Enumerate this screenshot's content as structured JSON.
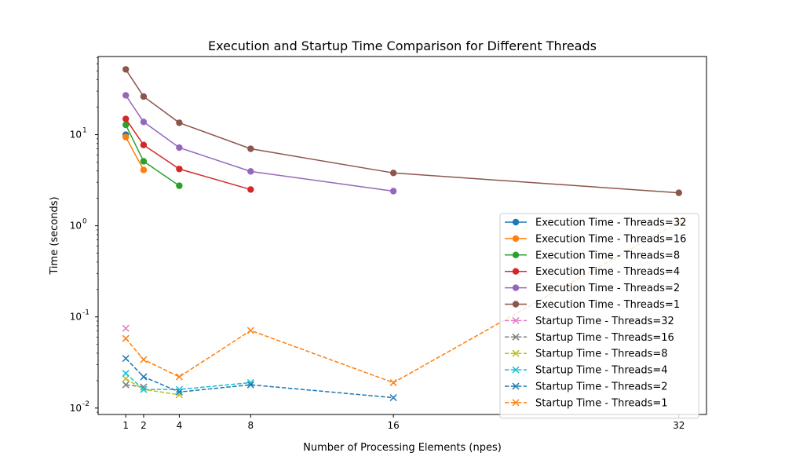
{
  "chart_data": {
    "type": "line",
    "title": "Execution and Startup Time Comparison for Different Threads",
    "xlabel": "Number of Processing Elements (npes)",
    "ylabel": "Time (seconds)",
    "yscale": "log",
    "xlim": [
      -0.55,
      33.55
    ],
    "ylim": [
      0.0085,
      72
    ],
    "xticks": [
      1,
      2,
      4,
      8,
      16,
      32
    ],
    "xtick_labels": [
      "1",
      "2",
      "4",
      "8",
      "16",
      "32"
    ],
    "yticks": [
      0.01,
      0.1,
      1,
      10
    ],
    "grid": false,
    "legend_position": "lower-right",
    "series": [
      {
        "name": "Execution Time - Threads=32",
        "color": "#1f77b4",
        "marker": "o",
        "linestyle": "solid",
        "x": [
          1
        ],
        "y": [
          10.0
        ]
      },
      {
        "name": "Execution Time - Threads=16",
        "color": "#ff7f0e",
        "marker": "o",
        "linestyle": "solid",
        "x": [
          1,
          2
        ],
        "y": [
          9.4,
          4.1
        ]
      },
      {
        "name": "Execution Time - Threads=8",
        "color": "#2ca02c",
        "marker": "o",
        "linestyle": "solid",
        "x": [
          1,
          2,
          4
        ],
        "y": [
          12.8,
          5.1,
          2.75
        ]
      },
      {
        "name": "Execution Time - Threads=4",
        "color": "#d62728",
        "marker": "o",
        "linestyle": "solid",
        "x": [
          1,
          2,
          4,
          8
        ],
        "y": [
          14.9,
          7.7,
          4.2,
          2.5
        ]
      },
      {
        "name": "Execution Time - Threads=2",
        "color": "#9467bd",
        "marker": "o",
        "linestyle": "solid",
        "x": [
          1,
          2,
          4,
          8,
          16
        ],
        "y": [
          27.0,
          13.8,
          7.2,
          3.95,
          2.4
        ]
      },
      {
        "name": "Execution Time - Threads=1",
        "color": "#8c564b",
        "marker": "o",
        "linestyle": "solid",
        "x": [
          1,
          2,
          4,
          8,
          16,
          32
        ],
        "y": [
          52.0,
          26.2,
          13.5,
          7.0,
          3.8,
          2.3
        ]
      },
      {
        "name": "Startup Time - Threads=32",
        "color": "#e377c2",
        "marker": "x",
        "linestyle": "dashed",
        "x": [
          1
        ],
        "y": [
          0.075
        ]
      },
      {
        "name": "Startup Time - Threads=16",
        "color": "#7f7f7f",
        "marker": "x",
        "linestyle": "dashed",
        "x": [
          1,
          2
        ],
        "y": [
          0.018,
          0.017
        ]
      },
      {
        "name": "Startup Time - Threads=8",
        "color": "#bcbd22",
        "marker": "x",
        "linestyle": "dashed",
        "x": [
          1,
          2,
          4
        ],
        "y": [
          0.021,
          0.016,
          0.014
        ]
      },
      {
        "name": "Startup Time - Threads=4",
        "color": "#17becf",
        "marker": "x",
        "linestyle": "dashed",
        "x": [
          1,
          2,
          4,
          8
        ],
        "y": [
          0.024,
          0.016,
          0.016,
          0.019
        ]
      },
      {
        "name": "Startup Time - Threads=2",
        "color": "#1f77b4",
        "marker": "x",
        "linestyle": "dashed",
        "x": [
          1,
          2,
          4,
          8,
          16
        ],
        "y": [
          0.035,
          0.022,
          0.015,
          0.018,
          0.013
        ]
      },
      {
        "name": "Startup Time - Threads=1",
        "color": "#ff7f0e",
        "marker": "x",
        "linestyle": "dashed",
        "x": [
          1,
          2,
          4,
          8,
          16,
          32
        ],
        "y": [
          0.058,
          0.034,
          0.022,
          0.071,
          0.019,
          1.1
        ]
      }
    ]
  }
}
